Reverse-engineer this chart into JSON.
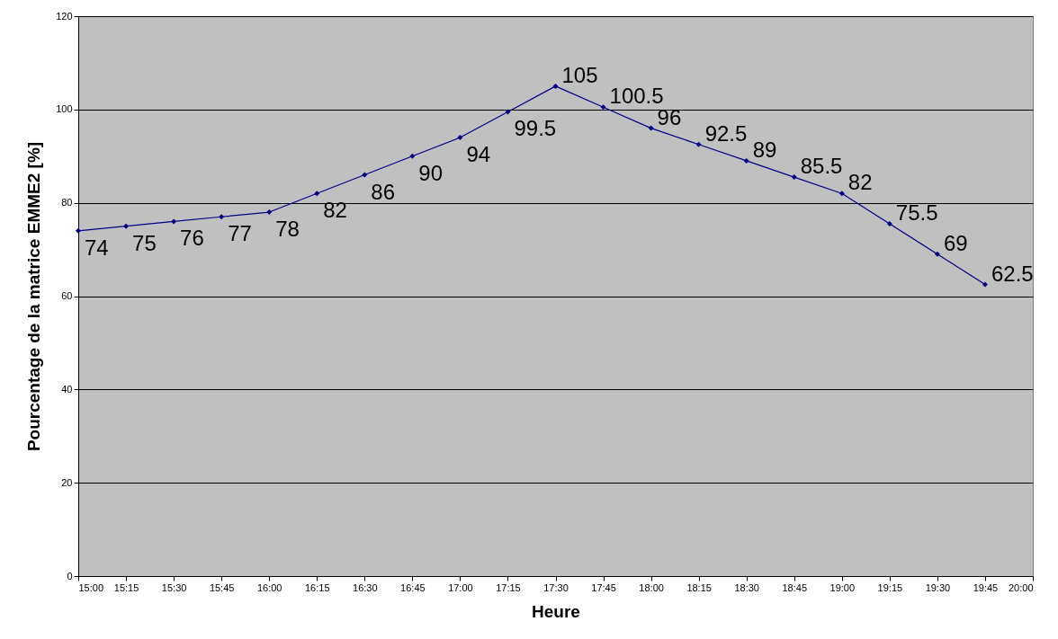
{
  "chart_data": {
    "type": "line",
    "xlabel": "Heure",
    "ylabel": "Pourcentage de la matrice EMME2 [%]",
    "x": [
      15,
      15.25,
      15.5,
      15.75,
      16,
      16.25,
      16.5,
      16.75,
      17,
      17.25,
      17.5,
      17.75,
      18,
      18.25,
      18.5,
      18.75,
      19,
      19.25,
      19.5,
      19.75
    ],
    "values": [
      74,
      75,
      76,
      77,
      78,
      82,
      86,
      90,
      94,
      99.5,
      105,
      100.5,
      96,
      92.5,
      89,
      85.5,
      82,
      75.5,
      69,
      62.5
    ],
    "color": "#000080",
    "xlim": [
      15,
      20
    ],
    "xticks": [
      {
        "value": 15,
        "label": "15:00"
      },
      {
        "value": 15.25,
        "label": "15:15"
      },
      {
        "value": 15.5,
        "label": "15:30"
      },
      {
        "value": 15.75,
        "label": "15:45"
      },
      {
        "value": 16,
        "label": "16:00"
      },
      {
        "value": 16.25,
        "label": "16:15"
      },
      {
        "value": 16.5,
        "label": "16:30"
      },
      {
        "value": 16.75,
        "label": "16:45"
      },
      {
        "value": 17,
        "label": "17:00"
      },
      {
        "value": 17.25,
        "label": "17:15"
      },
      {
        "value": 17.5,
        "label": "17:30"
      },
      {
        "value": 17.75,
        "label": "17:45"
      },
      {
        "value": 18,
        "label": "18:00"
      },
      {
        "value": 18.25,
        "label": "18:15"
      },
      {
        "value": 18.5,
        "label": "18:30"
      },
      {
        "value": 18.75,
        "label": "18:45"
      },
      {
        "value": 19,
        "label": "19:00"
      },
      {
        "value": 19.25,
        "label": "19:15"
      },
      {
        "value": 19.5,
        "label": "19:30"
      },
      {
        "value": 19.75,
        "label": "19:45"
      },
      {
        "value": 20,
        "label": "20:00"
      }
    ],
    "ylim": [
      0,
      120
    ],
    "yticks": [
      0,
      20,
      40,
      60,
      80,
      100,
      120
    ],
    "grid": "y",
    "marker": "diamond",
    "data_labels": true
  }
}
